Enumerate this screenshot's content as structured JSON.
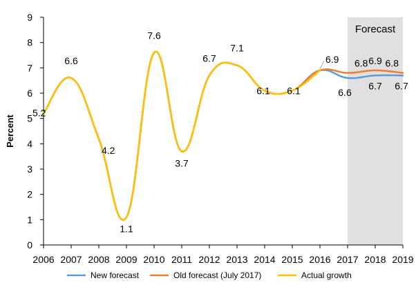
{
  "chart_data": {
    "type": "line",
    "title": "",
    "xlabel": "",
    "ylabel": "Percent",
    "ylim": [
      0,
      9
    ],
    "yticks": [
      "0",
      "1",
      "2",
      "3",
      "4",
      "5",
      "6",
      "7",
      "8",
      "9"
    ],
    "categories": [
      "2006",
      "2007",
      "2008",
      "2009",
      "2010",
      "2011",
      "2012",
      "2013",
      "2014",
      "2015",
      "2016",
      "2017",
      "2018",
      "2019"
    ],
    "forecast_region": {
      "label": "Forecast",
      "from": "2017",
      "to": "2019",
      "color": "#e0e0e0"
    },
    "grid": false,
    "legend_position": "bottom",
    "series": [
      {
        "name": "New forecast",
        "color": "#5b9bd5",
        "values": [
          5.2,
          6.6,
          4.2,
          1.1,
          7.6,
          3.7,
          6.7,
          7.1,
          6.1,
          6.1,
          6.9,
          6.6,
          6.7,
          6.7
        ]
      },
      {
        "name": "Old forecast (July 2017)",
        "color": "#ed7d31",
        "values": [
          5.2,
          6.6,
          4.2,
          1.1,
          7.6,
          3.7,
          6.7,
          7.1,
          6.1,
          6.1,
          6.9,
          6.8,
          6.9,
          6.8
        ]
      },
      {
        "name": "Actual growth",
        "color": "#ffc000",
        "values": [
          5.2,
          6.6,
          4.2,
          1.1,
          7.6,
          3.7,
          6.7,
          7.1,
          6.1,
          6.1,
          6.9,
          null,
          null,
          null
        ]
      }
    ],
    "data_labels": [
      {
        "x": "2006",
        "y": 5.2,
        "text": "5.2"
      },
      {
        "x": "2007",
        "y": 6.6,
        "text": "6.6"
      },
      {
        "x": "2008",
        "y": 4.2,
        "text": "4.2"
      },
      {
        "x": "2009",
        "y": 1.1,
        "text": "1.1"
      },
      {
        "x": "2010",
        "y": 7.6,
        "text": "7.6"
      },
      {
        "x": "2011",
        "y": 3.7,
        "text": "3.7"
      },
      {
        "x": "2012",
        "y": 6.7,
        "text": "6.7"
      },
      {
        "x": "2013",
        "y": 7.1,
        "text": "7.1"
      },
      {
        "x": "2014",
        "y": 6.1,
        "text": "6.1"
      },
      {
        "x": "2015",
        "y": 6.1,
        "text": "6.1"
      },
      {
        "x": "2016",
        "y": 6.9,
        "text": "6.9"
      },
      {
        "x": "2017",
        "y": 6.8,
        "text": "6.8"
      },
      {
        "x": "2018",
        "y": 6.9,
        "text": "6.9"
      },
      {
        "x": "2019",
        "y": 6.8,
        "text": "6.8"
      },
      {
        "x": "2017",
        "y": 6.6,
        "text": "6.6"
      },
      {
        "x": "2018",
        "y": 6.7,
        "text": "6.7"
      },
      {
        "x": "2019",
        "y": 6.7,
        "text": "6.7"
      }
    ]
  }
}
